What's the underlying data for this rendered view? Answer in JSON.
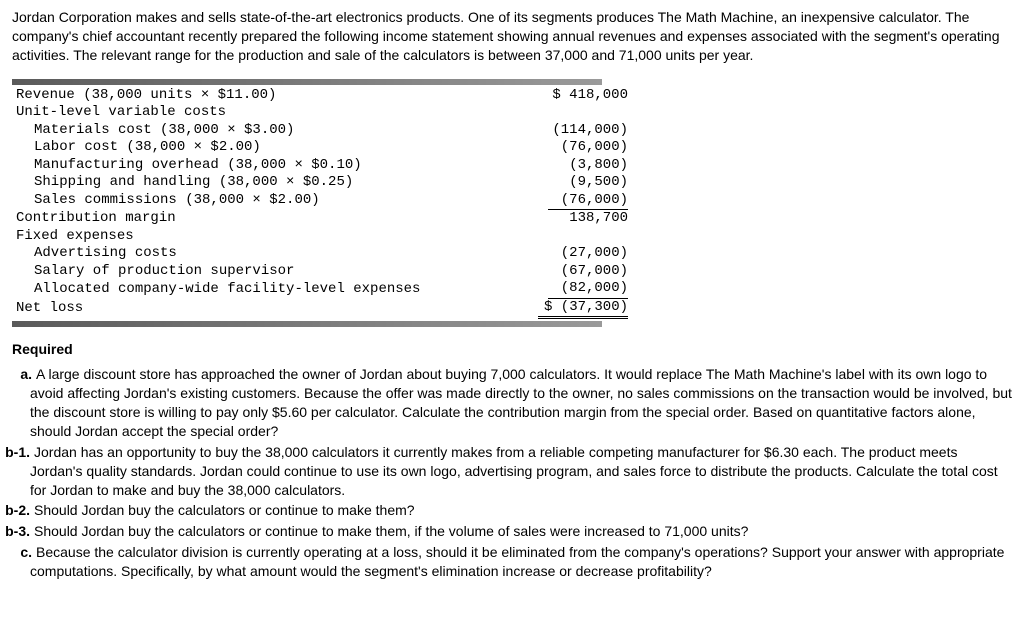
{
  "intro": "Jordan Corporation makes and sells state-of-the-art electronics products. One of its segments produces The Math Machine, an inexpensive calculator. The company's chief accountant recently prepared the following income statement showing annual revenues and expenses associated with the segment's operating activities. The relevant range for the production and sale of the calculators is between 37,000 and 71,000 units per year.",
  "table": {
    "font_family": "Courier New",
    "font_size": 14,
    "rows": [
      {
        "label": "Revenue (38,000 units × $11.00)",
        "indent": 0,
        "amount": "$ 418,000",
        "style": "plain"
      },
      {
        "label": "Unit-level variable costs",
        "indent": 0,
        "amount": "",
        "style": "plain"
      },
      {
        "label": "Materials cost (38,000 × $3.00)",
        "indent": 1,
        "amount": "(114,000)",
        "style": "plain"
      },
      {
        "label": "Labor cost (38,000 × $2.00)",
        "indent": 1,
        "amount": "(76,000)",
        "style": "plain"
      },
      {
        "label": "Manufacturing overhead (38,000 × $0.10)",
        "indent": 1,
        "amount": "(3,800)",
        "style": "plain"
      },
      {
        "label": "Shipping and handling (38,000 × $0.25)",
        "indent": 1,
        "amount": "(9,500)",
        "style": "plain"
      },
      {
        "label": "Sales commissions (38,000 × $2.00)",
        "indent": 1,
        "amount": "(76,000)",
        "style": "underline"
      },
      {
        "label": "Contribution margin",
        "indent": 0,
        "amount": "138,700",
        "style": "plain"
      },
      {
        "label": "Fixed expenses",
        "indent": 0,
        "amount": "",
        "style": "plain"
      },
      {
        "label": "Advertising costs",
        "indent": 1,
        "amount": "(27,000)",
        "style": "plain"
      },
      {
        "label": "Salary of production supervisor",
        "indent": 1,
        "amount": "(67,000)",
        "style": "plain"
      },
      {
        "label": "Allocated company-wide facility-level expenses",
        "indent": 1,
        "amount": "(82,000)",
        "style": "underline"
      },
      {
        "label": "Net loss",
        "indent": 0,
        "amount": "$ (37,300)",
        "style": "double"
      }
    ]
  },
  "required_header": "Required",
  "questions": [
    {
      "marker": "a.",
      "wide": false,
      "text": "A large discount store has approached the owner of Jordan about buying 7,000 calculators. It would replace The Math Machine's label with its own logo to avoid affecting Jordan's existing customers. Because the offer was made directly to the owner, no sales commissions on the transaction would be involved, but the discount store is willing to pay only $5.60 per calculator. Calculate the contribution margin from the special order. Based on quantitative factors alone, should Jordan accept the special order?"
    },
    {
      "marker": "b-1.",
      "wide": true,
      "text": "Jordan has an opportunity to buy the 38,000 calculators it currently makes from a reliable competing manufacturer for $6.30 each. The product meets Jordan's quality standards. Jordan could continue to use its own logo, advertising program, and sales force to distribute the products. Calculate the total cost for Jordan to make and buy the 38,000 calculators."
    },
    {
      "marker": "b-2.",
      "wide": true,
      "text": "Should Jordan buy the calculators or continue to make them?"
    },
    {
      "marker": "b-3.",
      "wide": true,
      "text": "Should Jordan buy the calculators or continue to make them, if the volume of sales were increased to 71,000 units?"
    },
    {
      "marker": "c.",
      "wide": false,
      "text": "Because the calculator division is currently operating at a loss, should it be eliminated from the company's operations? Support your answer with appropriate computations. Specifically, by what amount would the segment's elimination increase or decrease profitability?"
    }
  ],
  "colors": {
    "text": "#000000",
    "background": "#ffffff",
    "bar_gradient_start": "#5a5a5a",
    "bar_gradient_end": "#9a9a9a"
  }
}
